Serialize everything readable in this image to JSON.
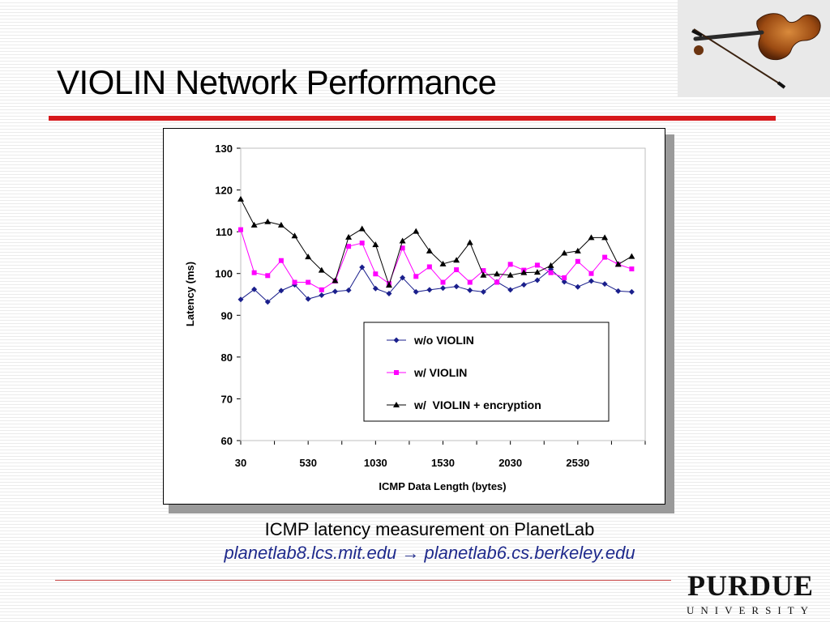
{
  "slide": {
    "title": "VIOLIN Network Performance",
    "caption_line1": "ICMP latency measurement on PlanetLab",
    "caption_line2": "planetlab8.lcs.mit.edu → planetlab6.cs.berkeley.edu"
  },
  "branding": {
    "logo_main": "PURDUE",
    "logo_sub": "UNIVERSITY"
  },
  "colors": {
    "title_rule": "#d7191c",
    "series_wo": "#1a1f8c",
    "series_w": "#ff00ff",
    "series_enc": "#000000"
  },
  "chart_data": {
    "type": "line",
    "xlabel": "ICMP Data Length (bytes)",
    "ylabel": "Latency (ms)",
    "xlim": [
      30,
      3030
    ],
    "ylim": [
      60,
      130
    ],
    "x_ticks": [
      30,
      530,
      1030,
      1530,
      2030,
      2530
    ],
    "y_ticks": [
      60,
      70,
      80,
      90,
      100,
      110,
      120,
      130
    ],
    "legend_position": "bottom-right",
    "grid": false,
    "x": [
      30,
      130,
      230,
      330,
      430,
      530,
      630,
      730,
      830,
      930,
      1030,
      1130,
      1230,
      1330,
      1430,
      1530,
      1630,
      1730,
      1830,
      1930,
      2030,
      2130,
      2230,
      2330,
      2430,
      2530,
      2630,
      2730,
      2830,
      2930
    ],
    "series": [
      {
        "name": "w/o VIOLIN",
        "marker": "diamond",
        "values": [
          93.8,
          96.2,
          93.2,
          95.9,
          97.3,
          93.9,
          94.8,
          95.7,
          96.0,
          101.5,
          96.4,
          95.2,
          99.0,
          95.6,
          96.1,
          96.5,
          96.9,
          96.0,
          95.6,
          98.0,
          96.1,
          97.3,
          98.4,
          101.0,
          98.0,
          96.8,
          98.2,
          97.5,
          95.8,
          95.6
        ]
      },
      {
        "name": "w/ VIOLIN",
        "marker": "square",
        "values": [
          110.5,
          100.2,
          99.5,
          103.1,
          97.9,
          97.9,
          96.1,
          98.2,
          106.5,
          107.3,
          99.9,
          97.6,
          106.1,
          99.3,
          101.6,
          97.9,
          100.9,
          97.9,
          100.7,
          97.9,
          102.2,
          100.8,
          102.0,
          100.2,
          99.0,
          102.9,
          100.0,
          103.9,
          102.2,
          101.1
        ]
      },
      {
        "name": "w/  VIOLIN + encryption",
        "marker": "triangle",
        "values": [
          117.8,
          111.6,
          112.4,
          111.6,
          109.0,
          104.0,
          100.8,
          98.3,
          108.7,
          110.7,
          106.9,
          97.2,
          107.8,
          110.1,
          105.4,
          102.3,
          103.2,
          107.4,
          99.6,
          99.9,
          99.6,
          100.2,
          100.3,
          101.9,
          104.9,
          105.4,
          108.6,
          108.6,
          102.2,
          104.1
        ]
      }
    ]
  }
}
